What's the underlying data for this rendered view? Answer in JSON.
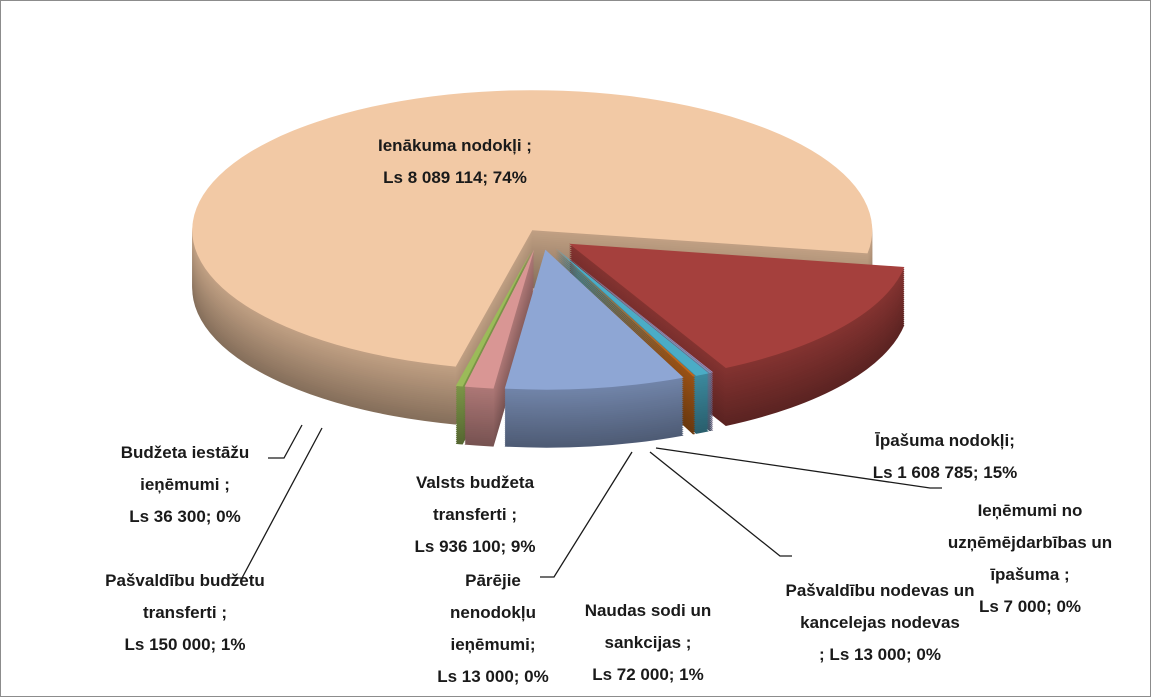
{
  "chart_data": {
    "type": "pie",
    "categories": [
      "Ienākuma nodokļi ;",
      "Īpašuma nodokļi;",
      "Ieņēmumi no uzņēmējdarbības un īpašuma ;",
      "Pašvaldību nodevas un kancelejas nodevas",
      "Naudas sodi un sankcijas ;",
      "Pārējie nenodokļu ieņēmumi;",
      "Valsts budžeta transferti ;",
      "Pašvaldību budžetu transferti ;",
      "Budžeta iestāžu ieņēmumi ;"
    ],
    "values": [
      8089114,
      1608785,
      7000,
      13000,
      72000,
      13000,
      936100,
      150000,
      36300
    ],
    "value_labels": [
      "Ls 8 089 114; 74%",
      "Ls 1 608 785; 15%",
      "Ls 7 000; 0%",
      "; Ls 13 000; 0%",
      "Ls 72 000; 1%",
      "Ls 13 000; 0%",
      "Ls 936 100; 9%",
      "Ls 150 000; 1%",
      "Ls 36 300; 0%"
    ],
    "colors": [
      "#f2c9a5",
      "#a5403d",
      "#9c8fc4",
      "#7d93b8",
      "#4bacc6",
      "#c0661a",
      "#8ea6d4",
      "#d99694",
      "#9bbb59"
    ]
  }
}
